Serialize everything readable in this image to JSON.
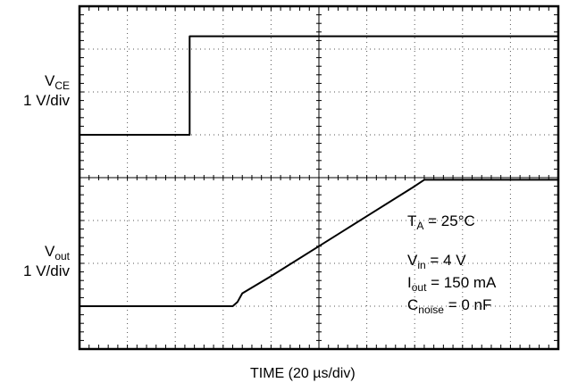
{
  "chart_data": {
    "type": "line",
    "xlabel_main": "TIME (20 ",
    "xlabel_unit": "µs/div)",
    "grid": true,
    "divisions": {
      "x": 10,
      "y": 8
    },
    "series": [
      {
        "name": "VCE",
        "label_main": "V",
        "label_sub": "CE",
        "scale": "1 V/div",
        "points_div": [
          [
            0,
            5.0
          ],
          [
            2.3,
            5.0
          ],
          [
            2.3,
            7.3
          ],
          [
            10,
            7.3
          ]
        ]
      },
      {
        "name": "Vout",
        "label_main": "V",
        "label_sub": "out",
        "scale": "1 V/div",
        "points_div": [
          [
            0,
            1.0
          ],
          [
            3.2,
            1.0
          ],
          [
            3.3,
            1.1
          ],
          [
            3.4,
            1.3
          ],
          [
            4.0,
            1.7
          ],
          [
            5.0,
            2.4
          ],
          [
            6.0,
            3.1
          ],
          [
            7.0,
            3.8
          ],
          [
            7.2,
            3.95
          ],
          [
            7.4,
            3.95
          ],
          [
            10,
            3.95
          ]
        ]
      }
    ],
    "annotations": {
      "ta": {
        "main": "T",
        "sub": "A",
        "rest": " = 25°C"
      },
      "vin": {
        "main": "V",
        "sub": "in",
        "rest": " = 4 V"
      },
      "iout": {
        "main": "I",
        "sub": "out",
        "rest": " = 150 mA"
      },
      "cnoise": {
        "main": "C",
        "sub": "noise",
        "rest": " = 0 nF"
      }
    }
  }
}
